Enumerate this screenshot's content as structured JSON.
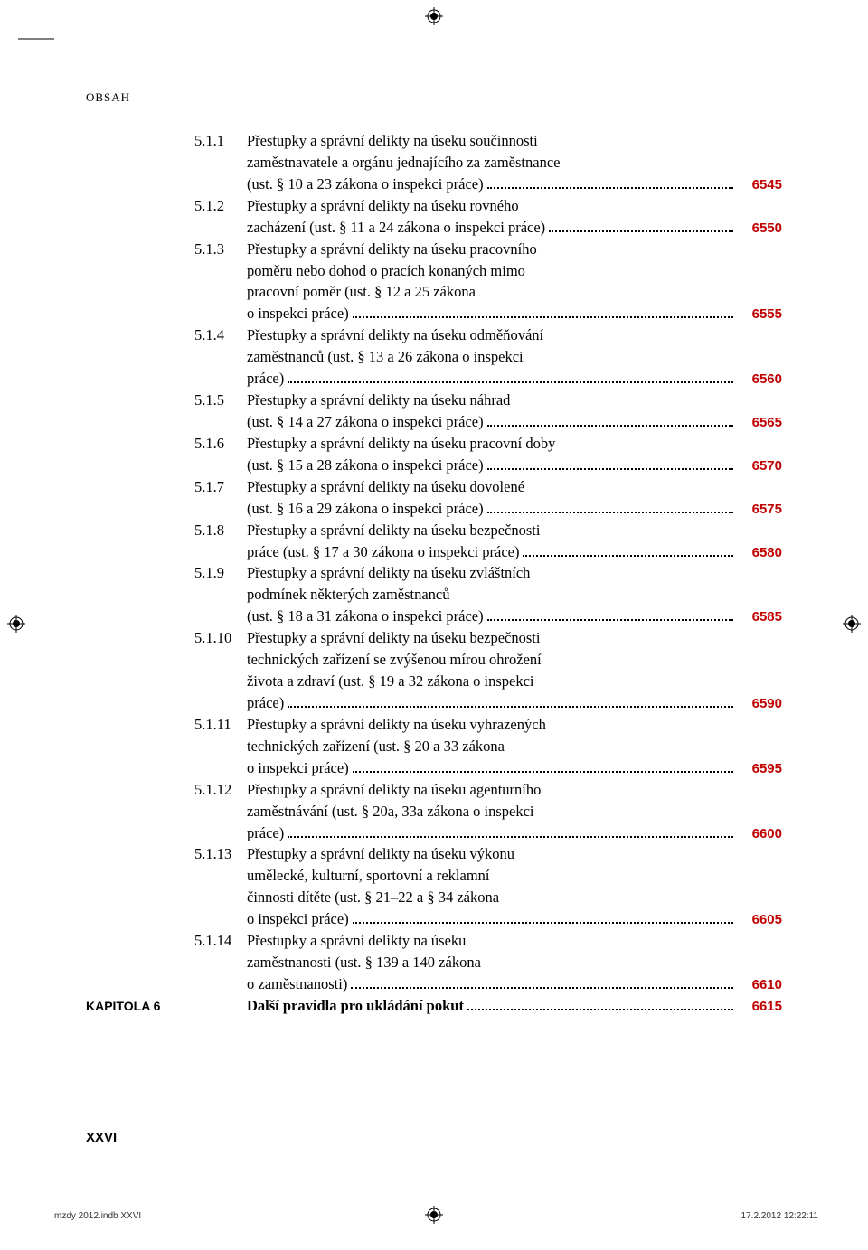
{
  "header": {
    "title": "OBSAH"
  },
  "colors": {
    "page_num": "#c00000",
    "text": "#000000",
    "bg": "#ffffff"
  },
  "toc": {
    "entries": [
      {
        "num": "5.1.1",
        "lines": [
          "Přestupky a správní delikty na úseku součinnosti",
          "zaměstnavatele a orgánu jednajícího za zaměstnance",
          "(ust. § 10 a 23 zákona o inspekci práce)"
        ],
        "page": "6545"
      },
      {
        "num": "5.1.2",
        "lines": [
          "Přestupky a správní delikty na úseku rovného",
          "zacházení (ust. § 11 a 24 zákona o inspekci práce)"
        ],
        "page": "6550"
      },
      {
        "num": "5.1.3",
        "lines": [
          "Přestupky a správní delikty na úseku pracovního",
          "poměru nebo dohod o pracích konaných mimo",
          "pracovní poměr (ust. § 12 a 25 zákona",
          "o inspekci práce)"
        ],
        "page": "6555"
      },
      {
        "num": "5.1.4",
        "lines": [
          "Přestupky a správní delikty na úseku odměňování",
          "zaměstnanců (ust. § 13 a 26 zákona o inspekci",
          "práce)"
        ],
        "page": "6560"
      },
      {
        "num": "5.1.5",
        "lines": [
          "Přestupky a správní delikty na úseku náhrad",
          "(ust. § 14 a 27 zákona o inspekci práce)"
        ],
        "page": "6565"
      },
      {
        "num": "5.1.6",
        "lines": [
          "Přestupky a správní delikty na úseku pracovní doby",
          "(ust. § 15 a 28 zákona o inspekci práce)"
        ],
        "page": "6570"
      },
      {
        "num": "5.1.7",
        "lines": [
          "Přestupky a správní delikty na úseku dovolené",
          "(ust. § 16 a 29 zákona o inspekci práce)"
        ],
        "page": "6575"
      },
      {
        "num": "5.1.8",
        "lines": [
          "Přestupky a správní delikty na úseku bezpečnosti",
          "práce (ust. § 17 a 30 zákona o inspekci práce)"
        ],
        "page": "6580"
      },
      {
        "num": "5.1.9",
        "lines": [
          "Přestupky a správní delikty na úseku zvláštních",
          "podmínek některých zaměstnanců",
          "(ust. § 18 a 31 zákona o inspekci práce)"
        ],
        "page": "6585"
      },
      {
        "num": "5.1.10",
        "lines": [
          "Přestupky a správní delikty na úseku bezpečnosti",
          "technických zařízení se zvýšenou mírou ohrožení",
          "života a zdraví (ust. § 19 a 32 zákona o inspekci",
          "práce)"
        ],
        "page": "6590"
      },
      {
        "num": "5.1.11",
        "lines": [
          "Přestupky a správní delikty na úseku vyhrazených",
          "technických zařízení (ust. § 20 a 33 zákona",
          "o inspekci práce)"
        ],
        "page": "6595"
      },
      {
        "num": "5.1.12",
        "lines": [
          "Přestupky a správní delikty na úseku agenturního",
          "zaměstnávání (ust. § 20a, 33a zákona o inspekci",
          "práce)"
        ],
        "page": "6600"
      },
      {
        "num": "5.1.13",
        "lines": [
          "Přestupky a správní delikty na úseku výkonu",
          "umělecké, kulturní, sportovní a reklamní",
          "činnosti dítěte (ust. § 21–22 a § 34 zákona",
          "o inspekci práce)"
        ],
        "page": "6605"
      },
      {
        "num": "5.1.14",
        "lines": [
          "Přestupky a správní delikty na úseku",
          "zaměstnanosti (ust. § 139 a 140 zákona",
          "o zaměstnanosti)"
        ],
        "page": "6610"
      }
    ],
    "chapter": {
      "label": "KAPITOLA  6",
      "title": "Další pravidla pro ukládání pokut",
      "page": "6615"
    }
  },
  "footer": {
    "pagenum": "XXVI",
    "file": "mzdy 2012.indb   XXVI",
    "date": "17.2.2012   12:22:11"
  }
}
